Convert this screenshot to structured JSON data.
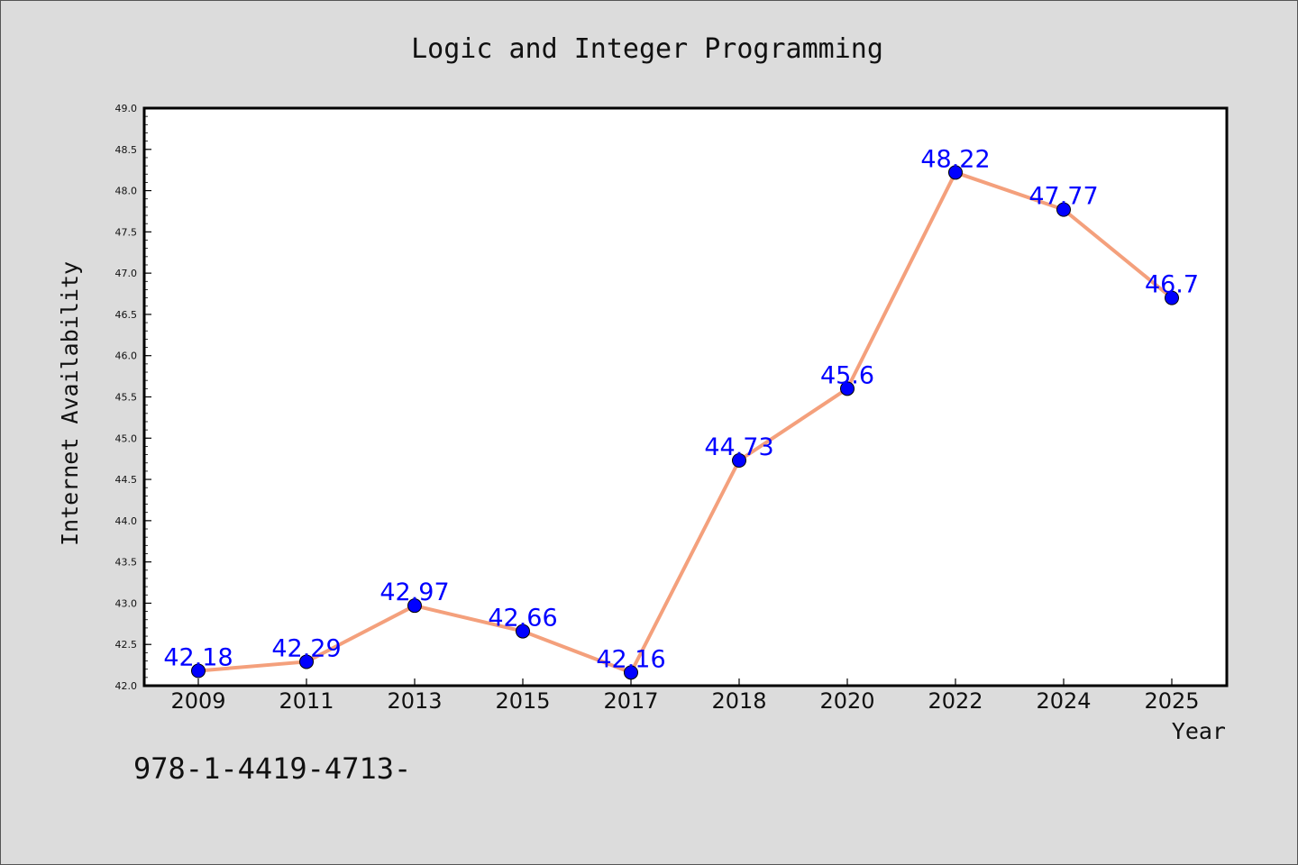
{
  "chart_data": {
    "type": "line",
    "title": "Logic and Integer Programming",
    "xlabel": "Year",
    "ylabel": "Internet Availability",
    "categories": [
      "2009",
      "2011",
      "2013",
      "2015",
      "2017",
      "2018",
      "2020",
      "2022",
      "2024",
      "2025"
    ],
    "series": [
      {
        "values": [
          42.18,
          42.29,
          42.97,
          42.66,
          42.16,
          44.73,
          45.6,
          48.22,
          47.77,
          46.7
        ],
        "data_labels": [
          "42.18",
          "42.29",
          "42.97",
          "42.66",
          "42.16",
          "44.73",
          "45.6",
          "48.22",
          "47.77",
          "46.7"
        ],
        "line_color": "#f4a07c",
        "marker_color": "#0000ff"
      }
    ],
    "ylim": [
      42.0,
      49.0
    ],
    "yticks": [
      "42.0",
      "42.5",
      "43.0",
      "43.5",
      "44.0",
      "44.5",
      "45.0",
      "45.5",
      "46.0",
      "46.5",
      "47.0",
      "47.5",
      "48.0",
      "48.5",
      "49.0"
    ],
    "grid": false,
    "legend": "none",
    "label_color": "#0000ff",
    "background": "#dcdcdc",
    "plot_background": "#ffffff"
  },
  "footnote": "978-1-4419-4713-"
}
